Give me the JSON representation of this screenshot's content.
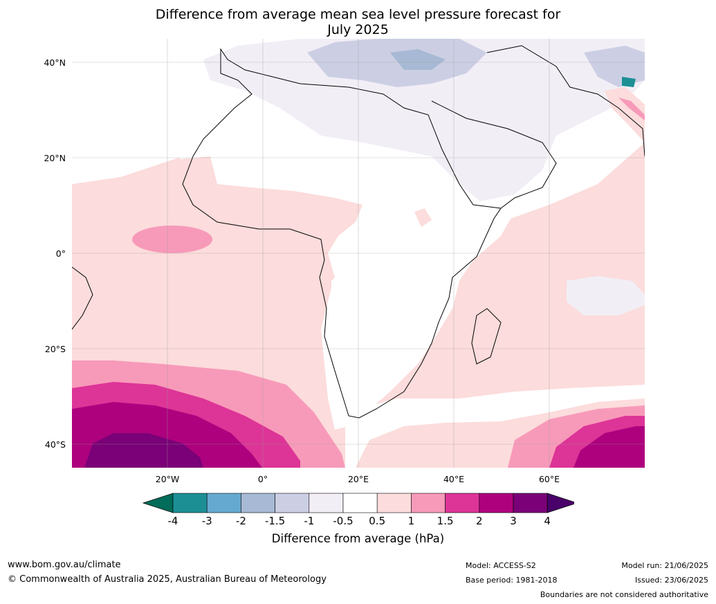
{
  "title_line1": "Difference from average mean sea level pressure forecast for",
  "title_line2": "July 2025",
  "map": {
    "lat_labels": [
      "40°N",
      "20°N",
      "0°",
      "20°S",
      "40°S"
    ],
    "lon_labels": [
      "20°W",
      "0°",
      "20°E",
      "40°E",
      "60°E"
    ],
    "grid": true
  },
  "colorbar": {
    "label": "Difference from average (hPa)",
    "ticks": [
      "-4",
      "-3",
      "-2",
      "-1.5",
      "-1",
      "-0.5",
      "0.5",
      "1",
      "1.5",
      "2",
      "3",
      "4"
    ],
    "colors": [
      "#016c59",
      "#1c8f95",
      "#65a9d1",
      "#a7b9d4",
      "#cccfe4",
      "#f2eef6",
      "#ffffff",
      "#fcdcdc",
      "#f79ab9",
      "#dd3497",
      "#ae017e",
      "#7a0177",
      "#49006a"
    ]
  },
  "footer": {
    "website": "www.bom.gov.au/climate",
    "copyright": "© Commonwealth of Australia 2025, Australian Bureau of Meteorology",
    "model": "Model: ACCESS-S2",
    "base_period": "Base period: 1981-2018",
    "model_run": "Model run: 21/06/2025",
    "issued": "Issued: 23/06/2025",
    "disclaimer": "Boundaries are not considered authoritative"
  }
}
